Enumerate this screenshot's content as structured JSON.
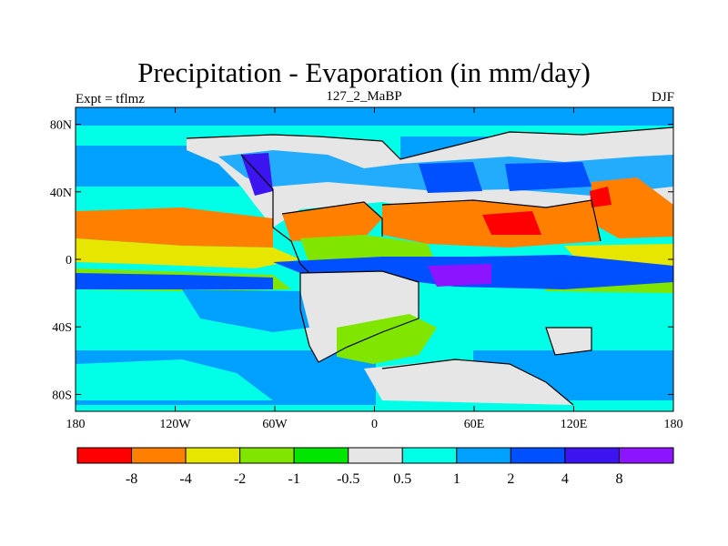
{
  "header": {
    "title": "Precipitation - Evaporation (in mm/day)",
    "subtitle": "127_2_MaBP",
    "left_label": "Expt = tflmz",
    "right_label": "DJF"
  },
  "chart_data": {
    "type": "heatmap",
    "title": "Precipitation - Evaporation (in mm/day)",
    "xlabel": "",
    "ylabel": "",
    "xlim": [
      -180,
      180
    ],
    "ylim": [
      -90,
      90
    ],
    "x_ticks": [
      -180,
      -120,
      -60,
      0,
      60,
      120,
      180
    ],
    "x_tick_labels": [
      "180",
      "120W",
      "60W",
      "0",
      "60E",
      "120E",
      "180"
    ],
    "y_ticks": [
      80,
      40,
      0,
      -40,
      -80
    ],
    "y_tick_labels": [
      "80N",
      "40N",
      "0",
      "40S",
      "80S"
    ],
    "colorbar": {
      "levels": [
        "-8",
        "-4",
        "-2",
        "-1",
        "-0.5",
        "0.5",
        "1",
        "2",
        "4",
        "8"
      ],
      "colors": [
        "#ff0000",
        "#ff8000",
        "#e6e600",
        "#80e600",
        "#00e600",
        "#e6e6e6",
        "#00ffe6",
        "#00a0ff",
        "#0050ff",
        "#3c14f0",
        "#8c14ff"
      ]
    }
  }
}
